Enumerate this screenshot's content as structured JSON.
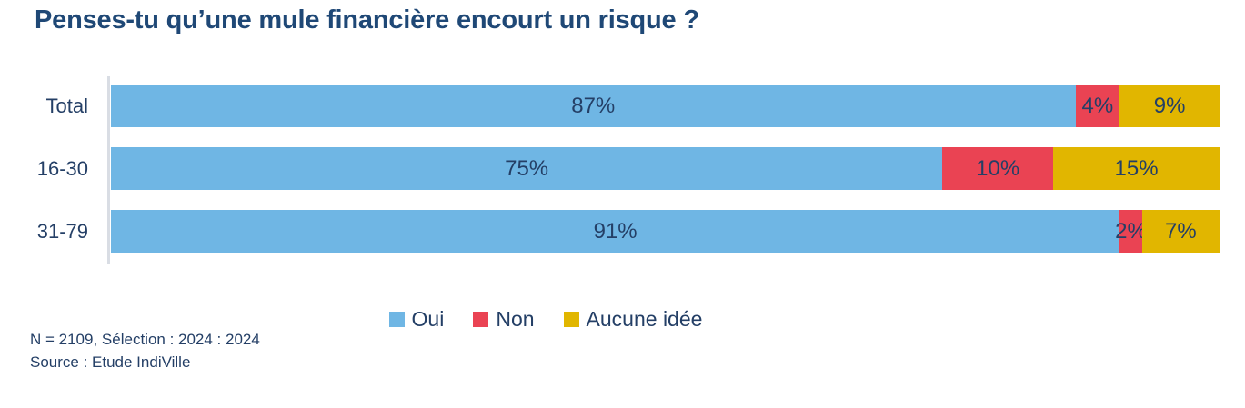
{
  "page": {
    "background": "#ffffff",
    "title_color": "#1f4876",
    "text_color": "#243f66",
    "axis_line_color": "#d9dde4"
  },
  "chart_data": {
    "type": "bar",
    "orientation": "horizontal",
    "stacked": true,
    "title": "Penses-tu qu’une mule financière encourt un risque ?",
    "categories": [
      "Total",
      "16-30",
      "31-79"
    ],
    "series": [
      {
        "name": "Oui",
        "color": "#6fb6e4",
        "values": [
          87,
          75,
          91
        ]
      },
      {
        "name": "Non",
        "color": "#ea4353",
        "values": [
          4,
          10,
          2
        ]
      },
      {
        "name": "Aucune idée",
        "color": "#e1b600",
        "values": [
          9,
          15,
          7
        ]
      }
    ],
    "value_suffix": "%",
    "xlim": [
      0,
      100
    ],
    "grid": false,
    "legend_position": "bottom",
    "notes": [
      "N = 2109, Sélection : 2024 : 2024",
      "Source : Etude IndiVille"
    ]
  }
}
